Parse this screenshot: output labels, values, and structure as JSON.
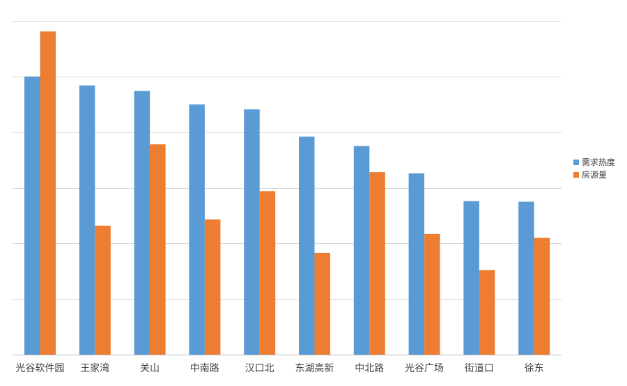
{
  "chart_data": {
    "type": "bar",
    "title": "",
    "xlabel": "",
    "ylabel": "",
    "categories": [
      "光谷软件园",
      "王家湾",
      "关山",
      "中南路",
      "汉口北",
      "东湖高新",
      "中北路",
      "光谷广场",
      "街道口",
      "徐东"
    ],
    "ylim": [
      0,
      6
    ],
    "grid": true,
    "legend_position": "right",
    "series": [
      {
        "name": "需求热度",
        "color": "#5b9bd5",
        "values": [
          5.0,
          4.84,
          4.74,
          4.5,
          4.41,
          3.92,
          3.75,
          3.26,
          2.76,
          2.75
        ]
      },
      {
        "name": "房源量",
        "color": "#ed7d31",
        "values": [
          5.81,
          2.32,
          3.78,
          2.43,
          2.94,
          1.83,
          3.28,
          2.17,
          1.52,
          2.1
        ]
      }
    ]
  }
}
